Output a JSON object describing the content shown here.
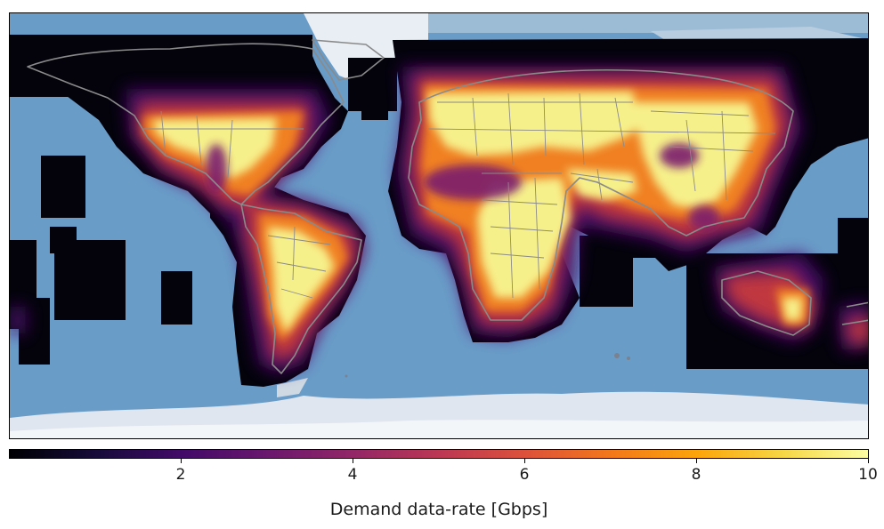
{
  "colorbar": {
    "label": "Demand data-rate [Gbps]",
    "min": 0,
    "max": 10,
    "colormap": "inferno",
    "ticks": [
      {
        "value": 2,
        "label": "2"
      },
      {
        "value": 4,
        "label": "4"
      },
      {
        "value": 6,
        "label": "6"
      },
      {
        "value": 8,
        "label": "8"
      },
      {
        "value": 10,
        "label": "10"
      }
    ]
  },
  "map": {
    "projection": "equirectangular",
    "ocean_color": "#6a9cc8",
    "ice_color": "#e6edf4",
    "border_color": "#8a8a8a",
    "no_demand_color": "#000004"
  }
}
